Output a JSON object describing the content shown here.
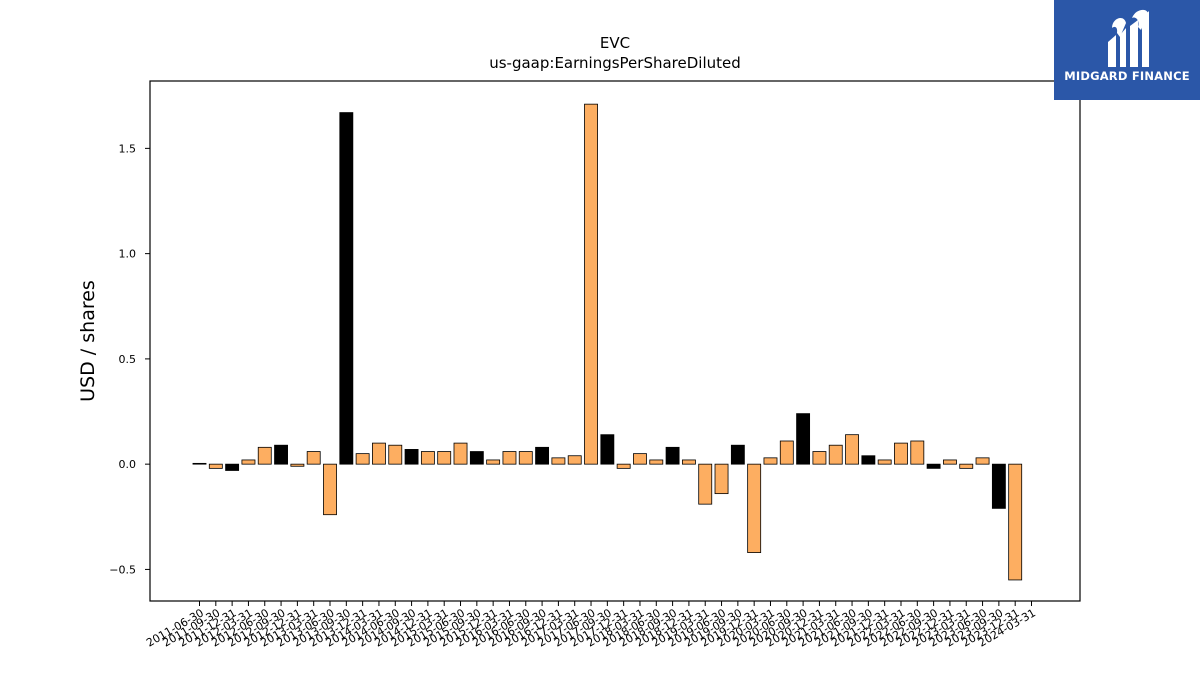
{
  "chart_data": {
    "type": "bar",
    "title": "EVC",
    "subtitle": "us-gaap:EarningsPerShareDiluted",
    "xlabel": "",
    "ylabel": "USD / shares",
    "ylim": [
      -0.65,
      1.82
    ],
    "yticks": [
      -0.5,
      0.0,
      0.5,
      1.0,
      1.5
    ],
    "ytick_labels": [
      "−0.5",
      "0.0",
      "0.5",
      "1.0",
      "1.5"
    ],
    "grid": false,
    "colors": {
      "annual": "#000000",
      "quarterly": "#fdae61",
      "edge": "#000000"
    },
    "bars": [
      {
        "label": "2011-06-30",
        "value": 0.0,
        "color": "annual"
      },
      {
        "label": "2011-09-30",
        "value": -0.02,
        "color": "quarterly"
      },
      {
        "label": "2011-12-31",
        "value": -0.03,
        "color": "annual"
      },
      {
        "label": "2012-03-31",
        "value": 0.02,
        "color": "quarterly"
      },
      {
        "label": "2012-06-30",
        "value": 0.08,
        "color": "quarterly"
      },
      {
        "label": "2012-09-30",
        "value": 0.09,
        "color": "annual"
      },
      {
        "label": "2012-12-31",
        "value": -0.01,
        "color": "quarterly"
      },
      {
        "label": "2013-03-31",
        "value": 0.06,
        "color": "quarterly"
      },
      {
        "label": "2013-06-30",
        "value": -0.24,
        "color": "quarterly"
      },
      {
        "label": "2013-09-30",
        "value": 1.67,
        "color": "annual"
      },
      {
        "label": "2013-12-31",
        "value": 0.05,
        "color": "quarterly"
      },
      {
        "label": "2014-03-31",
        "value": 0.1,
        "color": "quarterly"
      },
      {
        "label": "2014-06-30",
        "value": 0.09,
        "color": "quarterly"
      },
      {
        "label": "2014-09-30",
        "value": 0.07,
        "color": "annual"
      },
      {
        "label": "2014-12-31",
        "value": 0.06,
        "color": "quarterly"
      },
      {
        "label": "2015-03-31",
        "value": 0.06,
        "color": "quarterly"
      },
      {
        "label": "2015-06-30",
        "value": 0.1,
        "color": "quarterly"
      },
      {
        "label": "2015-09-30",
        "value": 0.06,
        "color": "annual"
      },
      {
        "label": "2015-12-31",
        "value": 0.02,
        "color": "quarterly"
      },
      {
        "label": "2016-03-31",
        "value": 0.06,
        "color": "quarterly"
      },
      {
        "label": "2016-06-30",
        "value": 0.06,
        "color": "quarterly"
      },
      {
        "label": "2016-09-30",
        "value": 0.08,
        "color": "annual"
      },
      {
        "label": "2016-12-31",
        "value": 0.03,
        "color": "quarterly"
      },
      {
        "label": "2017-03-31",
        "value": 0.04,
        "color": "quarterly"
      },
      {
        "label": "2017-06-30",
        "value": 1.71,
        "color": "quarterly"
      },
      {
        "label": "2017-09-30",
        "value": 0.14,
        "color": "annual"
      },
      {
        "label": "2017-12-31",
        "value": -0.02,
        "color": "quarterly"
      },
      {
        "label": "2018-03-31",
        "value": 0.05,
        "color": "quarterly"
      },
      {
        "label": "2018-06-30",
        "value": 0.02,
        "color": "quarterly"
      },
      {
        "label": "2018-09-30",
        "value": 0.08,
        "color": "annual"
      },
      {
        "label": "2018-12-31",
        "value": 0.02,
        "color": "quarterly"
      },
      {
        "label": "2019-03-31",
        "value": -0.19,
        "color": "quarterly"
      },
      {
        "label": "2019-06-30",
        "value": -0.14,
        "color": "quarterly"
      },
      {
        "label": "2019-09-30",
        "value": 0.09,
        "color": "annual"
      },
      {
        "label": "2019-12-31",
        "value": -0.42,
        "color": "quarterly"
      },
      {
        "label": "2020-03-31",
        "value": 0.03,
        "color": "quarterly"
      },
      {
        "label": "2020-06-30",
        "value": 0.11,
        "color": "quarterly"
      },
      {
        "label": "2020-09-30",
        "value": 0.24,
        "color": "annual"
      },
      {
        "label": "2020-12-31",
        "value": 0.06,
        "color": "quarterly"
      },
      {
        "label": "2021-03-31",
        "value": 0.09,
        "color": "quarterly"
      },
      {
        "label": "2021-06-30",
        "value": 0.14,
        "color": "quarterly"
      },
      {
        "label": "2021-09-30",
        "value": 0.04,
        "color": "annual"
      },
      {
        "label": "2021-12-31",
        "value": 0.02,
        "color": "quarterly"
      },
      {
        "label": "2022-03-31",
        "value": 0.1,
        "color": "quarterly"
      },
      {
        "label": "2022-06-30",
        "value": 0.11,
        "color": "quarterly"
      },
      {
        "label": "2022-09-30",
        "value": -0.02,
        "color": "annual"
      },
      {
        "label": "2022-12-31",
        "value": 0.02,
        "color": "quarterly"
      },
      {
        "label": "2023-03-31",
        "value": -0.02,
        "color": "quarterly"
      },
      {
        "label": "2023-06-30",
        "value": 0.03,
        "color": "quarterly"
      },
      {
        "label": "2023-09-30",
        "value": -0.21,
        "color": "annual"
      },
      {
        "label": "2023-12-31",
        "value": -0.55,
        "color": "quarterly"
      },
      {
        "label": "2024-03-31",
        "value": null,
        "color": "quarterly"
      }
    ]
  },
  "logo": {
    "text": "MIDGARD FINANCE",
    "icon": "midgard-logo-icon",
    "background": "#2b57a8"
  }
}
